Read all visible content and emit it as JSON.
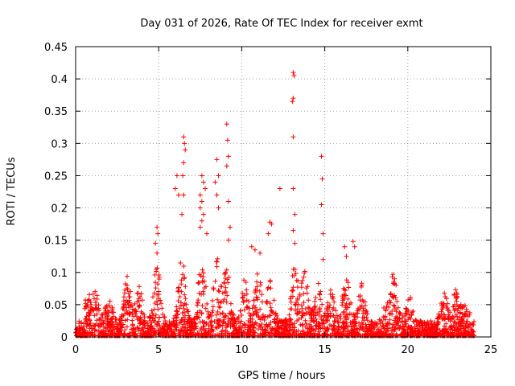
{
  "chart_data": {
    "type": "scatter",
    "title": "Day 031 of 2026, Rate Of TEC Index for receiver exmt",
    "xlabel": "GPS time / hours",
    "ylabel": "ROTI / TECUs",
    "xlim": [
      0,
      25
    ],
    "ylim": [
      0,
      0.45
    ],
    "xticks": [
      "0",
      "5",
      "10",
      "15",
      "20",
      "25"
    ],
    "yticks": [
      "0",
      "0.05",
      "0.1",
      "0.15",
      "0.2",
      "0.25",
      "0.3",
      "0.35",
      "0.4",
      "0.45"
    ],
    "grid": true,
    "marker": "+",
    "color": "#ff0000",
    "series": [
      {
        "points": [
          [
            6.5,
            0.31
          ],
          [
            6.55,
            0.3
          ],
          [
            6.6,
            0.29
          ],
          [
            6.5,
            0.27
          ],
          [
            6.45,
            0.25
          ],
          [
            6.1,
            0.25
          ],
          [
            6.0,
            0.23
          ],
          [
            6.2,
            0.22
          ],
          [
            6.5,
            0.22
          ],
          [
            6.4,
            0.19
          ],
          [
            7.6,
            0.25
          ],
          [
            7.7,
            0.24
          ],
          [
            7.8,
            0.23
          ],
          [
            7.5,
            0.22
          ],
          [
            7.6,
            0.21
          ],
          [
            7.5,
            0.2
          ],
          [
            7.7,
            0.19
          ],
          [
            7.6,
            0.18
          ],
          [
            7.5,
            0.17
          ],
          [
            7.9,
            0.16
          ],
          [
            8.5,
            0.275
          ],
          [
            8.6,
            0.25
          ],
          [
            8.4,
            0.24
          ],
          [
            8.5,
            0.22
          ],
          [
            8.6,
            0.2
          ],
          [
            9.1,
            0.33
          ],
          [
            9.15,
            0.305
          ],
          [
            9.2,
            0.28
          ],
          [
            9.1,
            0.265
          ],
          [
            9.2,
            0.21
          ],
          [
            9.3,
            0.17
          ],
          [
            9.2,
            0.15
          ],
          [
            13.1,
            0.41
          ],
          [
            13.15,
            0.405
          ],
          [
            13.1,
            0.37
          ],
          [
            13.05,
            0.365
          ],
          [
            13.1,
            0.31
          ],
          [
            13.1,
            0.23
          ],
          [
            13.2,
            0.19
          ],
          [
            13.1,
            0.165
          ],
          [
            13.2,
            0.145
          ],
          [
            12.3,
            0.23
          ],
          [
            14.8,
            0.28
          ],
          [
            14.85,
            0.245
          ],
          [
            14.8,
            0.205
          ],
          [
            14.9,
            0.16
          ],
          [
            14.9,
            0.12
          ],
          [
            4.9,
            0.17
          ],
          [
            4.95,
            0.16
          ],
          [
            4.8,
            0.145
          ],
          [
            4.9,
            0.13
          ],
          [
            11.7,
            0.178
          ],
          [
            11.8,
            0.175
          ],
          [
            11.6,
            0.16
          ],
          [
            16.2,
            0.14
          ],
          [
            16.3,
            0.125
          ],
          [
            16.7,
            0.148
          ],
          [
            16.8,
            0.14
          ],
          [
            3.1,
            0.094
          ],
          [
            19.1,
            0.097
          ],
          [
            19.2,
            0.09
          ],
          [
            22.2,
            0.068
          ],
          [
            22.8,
            0.066
          ],
          [
            22.9,
            0.06
          ],
          [
            10.6,
            0.14
          ],
          [
            10.8,
            0.135
          ],
          [
            11.1,
            0.13
          ]
        ]
      }
    ]
  }
}
